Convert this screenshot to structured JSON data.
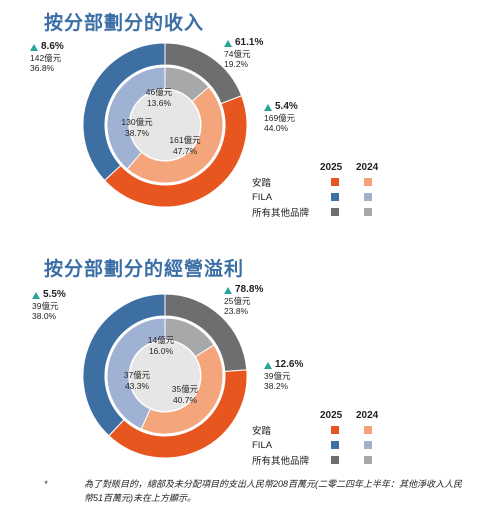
{
  "chart_data": [
    {
      "type": "donut",
      "title": "按分部劃分的收入",
      "legend": {
        "years": [
          "2025",
          "2024"
        ],
        "items": [
          "安踏",
          "FILA",
          "所有其他品牌"
        ]
      },
      "series": [
        {
          "name": "2025",
          "values": [
            44.0,
            36.8,
            19.2
          ]
        },
        {
          "name": "2024",
          "values": [
            47.7,
            38.7,
            13.6
          ]
        }
      ],
      "categories": [
        "安踏",
        "FILA",
        "所有其他品牌"
      ],
      "annotations_2025": [
        {
          "change": "5.4%",
          "amount": "169億元",
          "share": "44.0%"
        },
        {
          "change": "8.6%",
          "amount": "142億元",
          "share": "36.8%"
        },
        {
          "change": "61.1%",
          "amount": "74億元",
          "share": "19.2%"
        }
      ],
      "labels_2024": [
        {
          "amount": "161億元",
          "share": "47.7%"
        },
        {
          "amount": "130億元",
          "share": "38.7%"
        },
        {
          "amount": "46億元",
          "share": "13.6%"
        }
      ]
    },
    {
      "type": "donut",
      "title": "按分部劃分的經營溢利",
      "legend": {
        "years": [
          "2025",
          "2024"
        ],
        "items": [
          "安踏",
          "FILA",
          "所有其他品牌"
        ]
      },
      "series": [
        {
          "name": "2025",
          "values": [
            38.2,
            38.0,
            23.8
          ]
        },
        {
          "name": "2024",
          "values": [
            40.7,
            43.3,
            16.0
          ]
        }
      ],
      "categories": [
        "安踏",
        "FILA",
        "所有其他品牌"
      ],
      "annotations_2025": [
        {
          "change": "12.6%",
          "amount": "39億元",
          "share": "38.2%"
        },
        {
          "change": "5.5%",
          "amount": "39億元",
          "share": "38.0%"
        },
        {
          "change": "78.8%",
          "amount": "25億元",
          "share": "23.8%"
        }
      ],
      "labels_2024": [
        {
          "amount": "35億元",
          "share": "40.7%"
        },
        {
          "amount": "37億元",
          "share": "43.3%"
        },
        {
          "amount": "14億元",
          "share": "16.0%"
        }
      ]
    }
  ],
  "colors": {
    "2025": [
      "#e8561f",
      "#3d6fa3",
      "#6d6e70"
    ],
    "2024": [
      "#f4a57c",
      "#9fb2d4",
      "#a7a8aa"
    ],
    "title": "#3b6ea5",
    "up_arrow": "#2aa59a"
  },
  "footnote": {
    "mark": "*",
    "text": "為了對賬目的，總部及未分配項目的支出人民幣208百萬元(二零二四年上半年：其他淨收入人民幣51百萬元)未在上方顯示。"
  }
}
